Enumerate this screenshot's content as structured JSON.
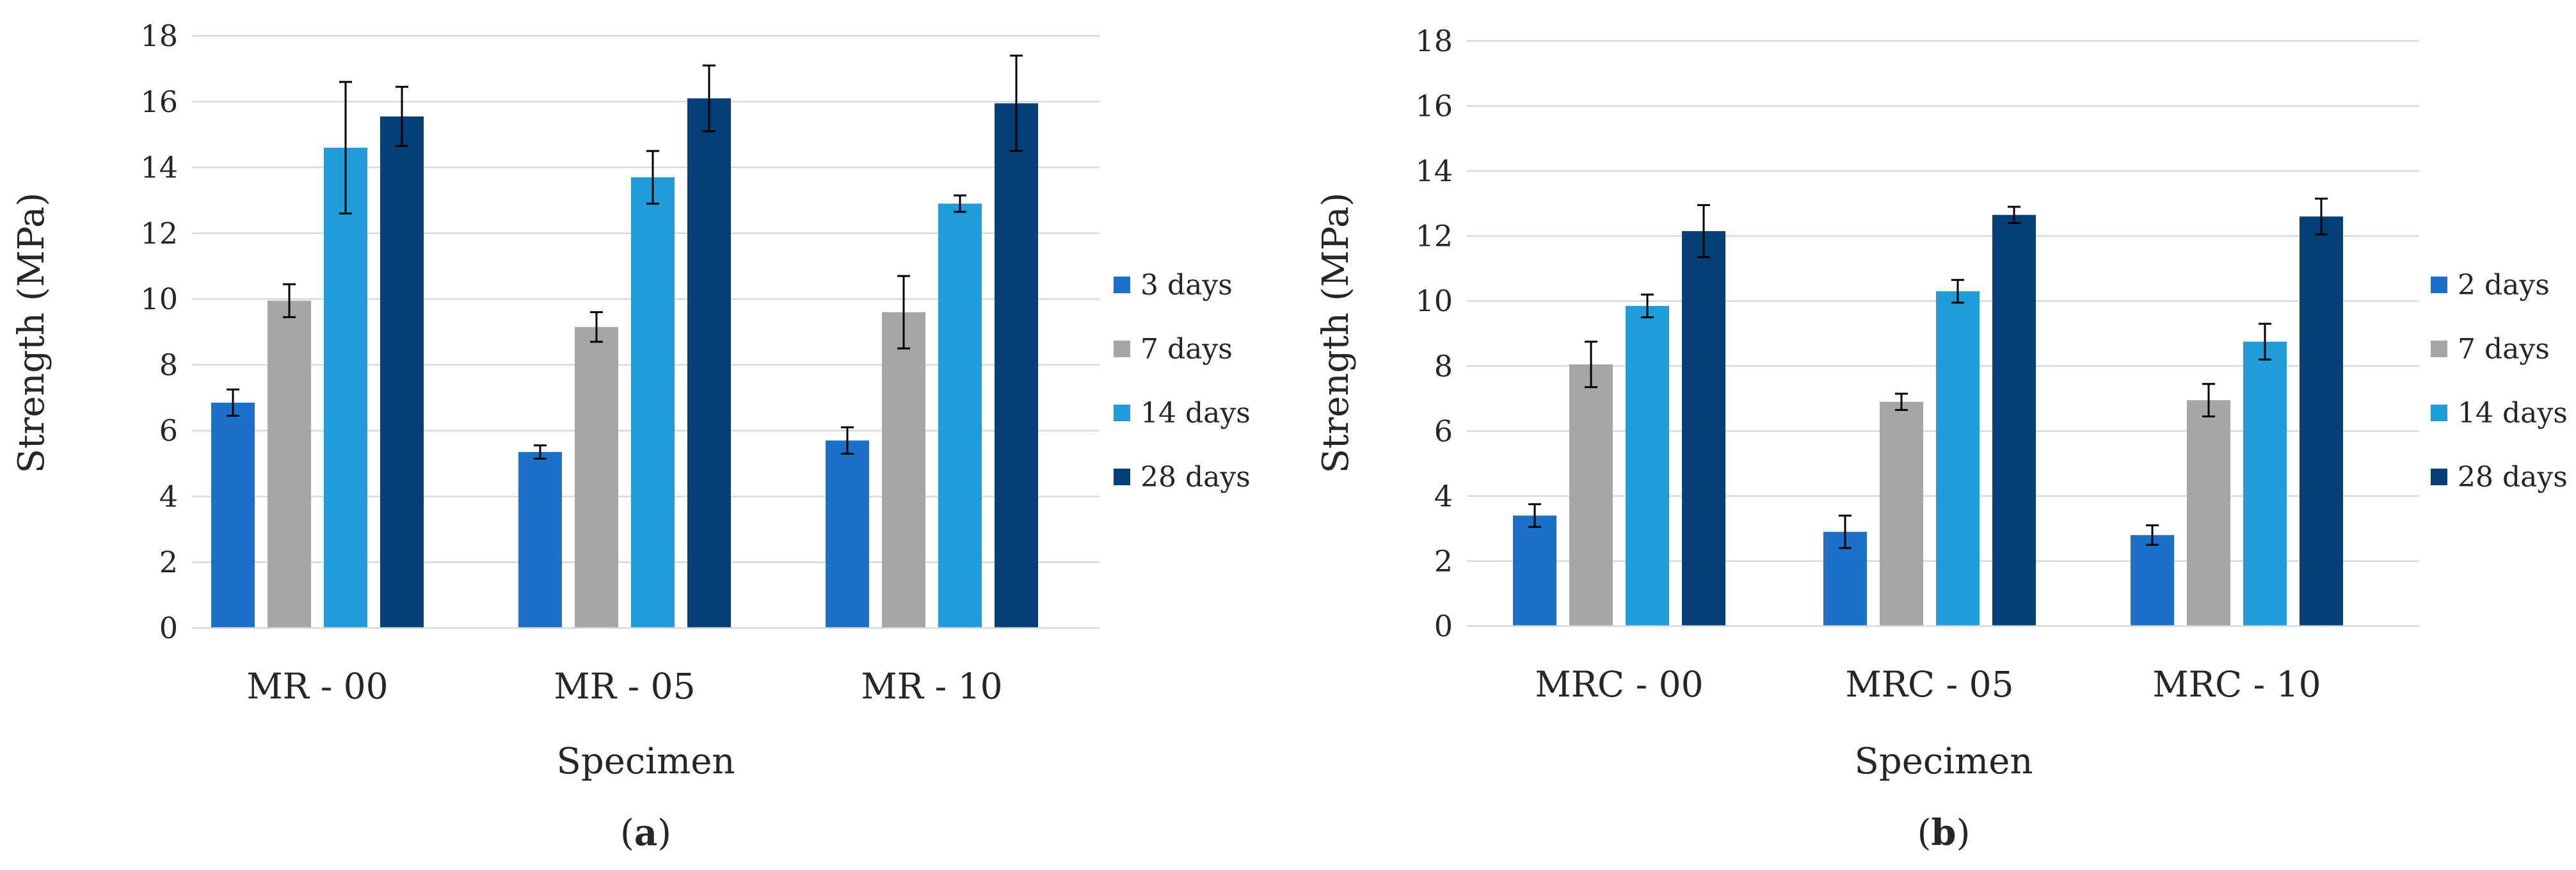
{
  "figure": {
    "panels": [
      {
        "label_open": "(",
        "label_letter": "a",
        "label_close": ")"
      },
      {
        "label_open": "(",
        "label_letter": "b",
        "label_close": ")"
      }
    ]
  },
  "chart_data": [
    {
      "type": "bar",
      "title": "",
      "xlabel": "Specimen",
      "ylabel": "Strength (MPa)",
      "ylim": [
        0,
        18
      ],
      "yticks": [
        0,
        2,
        4,
        6,
        8,
        10,
        12,
        14,
        16,
        18
      ],
      "grid": true,
      "legend_position": "right",
      "categories": [
        "MR - 00",
        "MR - 05",
        "MR - 10"
      ],
      "series": [
        {
          "name": "3 days",
          "color": "#1B70C9",
          "values": [
            6.85,
            5.35,
            5.7
          ],
          "errors": [
            0.4,
            0.2,
            0.4
          ]
        },
        {
          "name": "7 days",
          "color": "#A6A6A6",
          "values": [
            9.95,
            9.15,
            9.6
          ],
          "errors": [
            0.5,
            0.45,
            1.1
          ]
        },
        {
          "name": "14 days",
          "color": "#1E9DD8",
          "values": [
            14.6,
            13.7,
            12.9
          ],
          "errors": [
            2.0,
            0.8,
            0.25
          ]
        },
        {
          "name": "28 days",
          "color": "#043F78",
          "values": [
            15.55,
            16.1,
            15.95
          ],
          "errors": [
            0.9,
            1.0,
            1.45
          ]
        }
      ]
    },
    {
      "type": "bar",
      "title": "",
      "xlabel": "Specimen",
      "ylabel": "Strength (MPa)",
      "ylim": [
        0,
        18
      ],
      "yticks": [
        0,
        2,
        4,
        6,
        8,
        10,
        12,
        14,
        16,
        18
      ],
      "grid": true,
      "legend_position": "right",
      "categories": [
        "MRC - 00",
        "MRC - 05",
        "MRC - 10"
      ],
      "series": [
        {
          "name": "2 days",
          "color": "#1B70C9",
          "values": [
            3.4,
            2.9,
            2.8
          ],
          "errors": [
            0.35,
            0.5,
            0.3
          ]
        },
        {
          "name": "7 days",
          "color": "#A6A6A6",
          "values": [
            8.05,
            6.9,
            6.95
          ],
          "errors": [
            0.7,
            0.25,
            0.5
          ]
        },
        {
          "name": "14 days",
          "color": "#1E9DD8",
          "values": [
            9.85,
            10.3,
            8.75
          ],
          "errors": [
            0.35,
            0.35,
            0.55
          ]
        },
        {
          "name": "28 days",
          "color": "#043F78",
          "values": [
            12.15,
            12.65,
            12.6
          ],
          "errors": [
            0.8,
            0.25,
            0.55
          ]
        }
      ]
    }
  ]
}
